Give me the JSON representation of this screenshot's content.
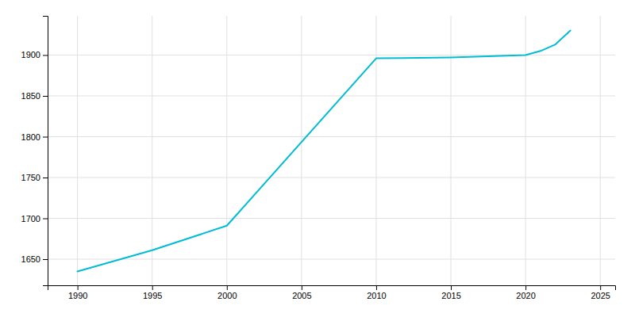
{
  "chart_data": {
    "type": "line",
    "x": [
      1990,
      1995,
      2000,
      2010,
      2015,
      2020,
      2021,
      2022,
      2023
    ],
    "values": [
      1635,
      1661,
      1691,
      1896,
      1897,
      1900,
      1905,
      1913,
      1930
    ],
    "color": "#00BCD4",
    "xlim": [
      1988,
      2026
    ],
    "ylim": [
      1618,
      1948
    ],
    "xticks": [
      1990,
      1995,
      2000,
      2005,
      2010,
      2015,
      2020,
      2025
    ],
    "yticks": [
      1650,
      1700,
      1750,
      1800,
      1850,
      1900
    ],
    "grid": true
  }
}
